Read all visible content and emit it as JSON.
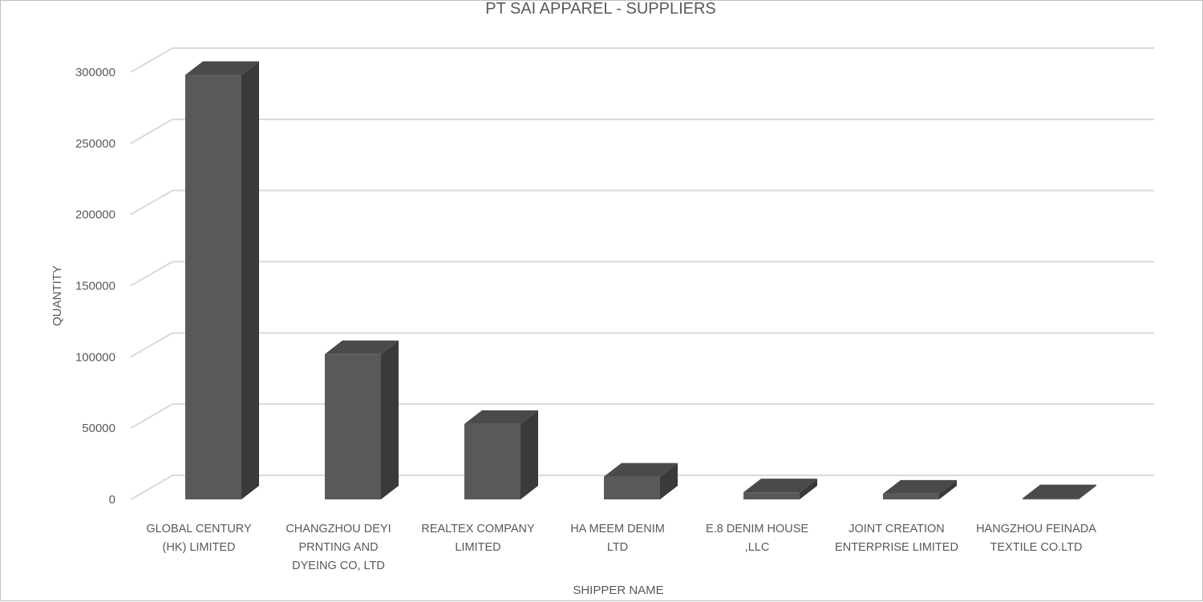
{
  "chart_data": {
    "type": "bar",
    "title": "PT SAI APPAREL - SUPPLIERS",
    "xlabel": "SHIPPER NAME",
    "ylabel": "QUANTITY",
    "ylim": [
      0,
      300000
    ],
    "y_ticks": [
      0,
      50000,
      100000,
      150000,
      200000,
      250000,
      300000
    ],
    "y_tick_labels": [
      "0",
      "50000",
      "100000",
      "150000",
      "200000",
      "250000",
      "300000"
    ],
    "grid": true,
    "legend": "none",
    "style": "3d-column",
    "categories": [
      [
        "GLOBAL CENTURY",
        "(HK) LIMITED"
      ],
      [
        "CHANGZHOU DEYI",
        "PRNTING AND",
        "DYEING CO, LTD"
      ],
      [
        "REALTEX COMPANY",
        "LIMITED"
      ],
      [
        "HA MEEM DENIM",
        "LTD"
      ],
      [
        "E.8 DENIM HOUSE",
        ",LLC"
      ],
      [
        "JOINT CREATION",
        "ENTERPRISE LIMITED"
      ],
      [
        "HANGZHOU FEINADA",
        "TEXTILE CO.LTD"
      ]
    ],
    "values": [
      298000,
      102000,
      53000,
      16000,
      5000,
      4000,
      800
    ],
    "colors": {
      "bar_front": "#595959",
      "bar_side": "#3a3a3a",
      "bar_top": "#4a4a4a",
      "grid": "#d9d9d9",
      "text": "#595959"
    }
  }
}
